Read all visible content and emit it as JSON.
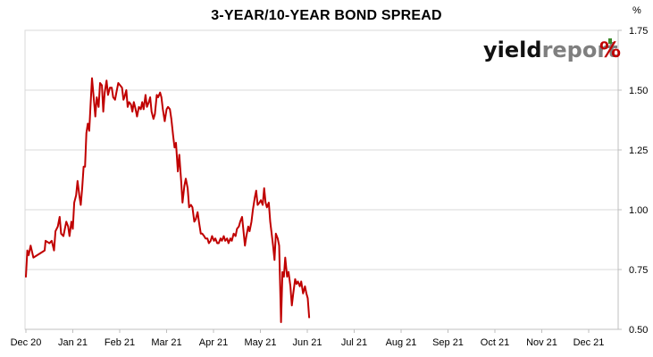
{
  "chart_data": {
    "type": "line",
    "title": "3-YEAR/10-YEAR BOND SPREAD",
    "unit": "%",
    "xlabel": "",
    "ylabel": "",
    "ylim": [
      0.5,
      1.75
    ],
    "y_ticks": [
      "0.50",
      "0.75",
      "1.00",
      "1.25",
      "1.50",
      "1.75"
    ],
    "y_axis_position": "right",
    "x_ticks": [
      "Dec 20",
      "Jan 21",
      "Feb 21",
      "Mar 21",
      "Apr 21",
      "May 21",
      "Jun 21",
      "Jul 21",
      "Aug 21",
      "Sep 21",
      "Oct 21",
      "Nov 21",
      "Dec 21"
    ],
    "grid": "horizontal",
    "line_color": "#c00000",
    "series": [
      {
        "values": [
          [
            0,
            0.72
          ],
          [
            0.03,
            0.83
          ],
          [
            0.06,
            0.81
          ],
          [
            0.1,
            0.85
          ],
          [
            0.16,
            0.8
          ],
          [
            0.4,
            0.83
          ],
          [
            0.42,
            0.87
          ],
          [
            0.5,
            0.86
          ],
          [
            0.55,
            0.87
          ],
          [
            0.6,
            0.83
          ],
          [
            0.63,
            0.91
          ],
          [
            0.68,
            0.93
          ],
          [
            0.72,
            0.97
          ],
          [
            0.75,
            0.9
          ],
          [
            0.8,
            0.89
          ],
          [
            0.86,
            0.95
          ],
          [
            0.9,
            0.93
          ],
          [
            0.93,
            0.89
          ],
          [
            0.97,
            0.95
          ],
          [
            1.0,
            0.92
          ],
          [
            1.03,
            1.03
          ],
          [
            1.07,
            1.06
          ],
          [
            1.1,
            1.12
          ],
          [
            1.14,
            1.06
          ],
          [
            1.17,
            1.02
          ],
          [
            1.2,
            1.09
          ],
          [
            1.23,
            1.18
          ],
          [
            1.26,
            1.18
          ],
          [
            1.29,
            1.32
          ],
          [
            1.32,
            1.36
          ],
          [
            1.35,
            1.33
          ],
          [
            1.38,
            1.44
          ],
          [
            1.41,
            1.55
          ],
          [
            1.45,
            1.46
          ],
          [
            1.48,
            1.39
          ],
          [
            1.51,
            1.47
          ],
          [
            1.55,
            1.43
          ],
          [
            1.58,
            1.53
          ],
          [
            1.62,
            1.52
          ],
          [
            1.65,
            1.41
          ],
          [
            1.68,
            1.49
          ],
          [
            1.72,
            1.54
          ],
          [
            1.75,
            1.48
          ],
          [
            1.79,
            1.51
          ],
          [
            1.83,
            1.51
          ],
          [
            1.86,
            1.47
          ],
          [
            1.9,
            1.46
          ],
          [
            1.93,
            1.49
          ],
          [
            1.97,
            1.53
          ],
          [
            2.01,
            1.52
          ],
          [
            2.05,
            1.51
          ],
          [
            2.08,
            1.46
          ],
          [
            2.1,
            1.47
          ],
          [
            2.14,
            1.5
          ],
          [
            2.17,
            1.43
          ],
          [
            2.2,
            1.45
          ],
          [
            2.24,
            1.44
          ],
          [
            2.27,
            1.41
          ],
          [
            2.3,
            1.45
          ],
          [
            2.34,
            1.42
          ],
          [
            2.37,
            1.39
          ],
          [
            2.41,
            1.43
          ],
          [
            2.45,
            1.42
          ],
          [
            2.48,
            1.45
          ],
          [
            2.51,
            1.42
          ],
          [
            2.55,
            1.48
          ],
          [
            2.58,
            1.43
          ],
          [
            2.62,
            1.45
          ],
          [
            2.65,
            1.47
          ],
          [
            2.68,
            1.41
          ],
          [
            2.72,
            1.38
          ],
          [
            2.75,
            1.4
          ],
          [
            2.79,
            1.48
          ],
          [
            2.82,
            1.47
          ],
          [
            2.86,
            1.49
          ],
          [
            2.89,
            1.47
          ],
          [
            2.92,
            1.42
          ],
          [
            2.96,
            1.37
          ],
          [
            3.0,
            1.42
          ],
          [
            3.03,
            1.43
          ],
          [
            3.07,
            1.42
          ],
          [
            3.1,
            1.38
          ],
          [
            3.14,
            1.31
          ],
          [
            3.17,
            1.26
          ],
          [
            3.2,
            1.28
          ],
          [
            3.24,
            1.16
          ],
          [
            3.27,
            1.23
          ],
          [
            3.31,
            1.12
          ],
          [
            3.34,
            1.03
          ],
          [
            3.38,
            1.1
          ],
          [
            3.41,
            1.13
          ],
          [
            3.45,
            1.09
          ],
          [
            3.48,
            1.01
          ],
          [
            3.52,
            1.02
          ],
          [
            3.55,
            1.01
          ],
          [
            3.59,
            0.95
          ],
          [
            3.62,
            0.96
          ],
          [
            3.66,
            0.99
          ],
          [
            3.69,
            0.95
          ],
          [
            3.73,
            0.9
          ],
          [
            3.76,
            0.9
          ],
          [
            3.8,
            0.89
          ],
          [
            3.83,
            0.88
          ],
          [
            3.87,
            0.88
          ],
          [
            3.9,
            0.86
          ],
          [
            3.94,
            0.87
          ],
          [
            3.97,
            0.89
          ],
          [
            4.01,
            0.87
          ],
          [
            4.04,
            0.88
          ],
          [
            4.08,
            0.86
          ],
          [
            4.11,
            0.86
          ],
          [
            4.15,
            0.88
          ],
          [
            4.18,
            0.87
          ],
          [
            4.22,
            0.89
          ],
          [
            4.25,
            0.87
          ],
          [
            4.29,
            0.88
          ],
          [
            4.32,
            0.86
          ],
          [
            4.36,
            0.88
          ],
          [
            4.39,
            0.87
          ],
          [
            4.43,
            0.9
          ],
          [
            4.47,
            0.89
          ],
          [
            4.5,
            0.92
          ],
          [
            4.54,
            0.93
          ],
          [
            4.57,
            0.95
          ],
          [
            4.61,
            0.97
          ],
          [
            4.64,
            0.91
          ],
          [
            4.67,
            0.85
          ],
          [
            4.7,
            0.89
          ],
          [
            4.74,
            0.93
          ],
          [
            4.77,
            0.91
          ],
          [
            4.81,
            0.95
          ],
          [
            4.84,
            1.0
          ],
          [
            4.88,
            1.05
          ],
          [
            4.91,
            1.08
          ],
          [
            4.94,
            1.02
          ],
          [
            4.98,
            1.03
          ],
          [
            5.01,
            1.04
          ],
          [
            5.05,
            1.02
          ],
          [
            5.08,
            1.09
          ],
          [
            5.11,
            1.03
          ],
          [
            5.14,
            1.01
          ],
          [
            5.18,
            1.03
          ],
          [
            5.21,
            0.95
          ],
          [
            5.24,
            0.9
          ],
          [
            5.27,
            0.85
          ],
          [
            5.3,
            0.79
          ],
          [
            5.33,
            0.9
          ],
          [
            5.37,
            0.88
          ],
          [
            5.4,
            0.85
          ],
          [
            5.44,
            0.53
          ],
          [
            5.47,
            0.74
          ],
          [
            5.5,
            0.72
          ],
          [
            5.53,
            0.8
          ],
          [
            5.57,
            0.72
          ],
          [
            5.6,
            0.74
          ],
          [
            5.64,
            0.68
          ],
          [
            5.67,
            0.6
          ],
          [
            5.7,
            0.65
          ],
          [
            5.74,
            0.71
          ],
          [
            5.77,
            0.69
          ],
          [
            5.8,
            0.7
          ],
          [
            5.84,
            0.68
          ],
          [
            5.87,
            0.7
          ],
          [
            5.91,
            0.65
          ],
          [
            5.95,
            0.68
          ],
          [
            5.98,
            0.65
          ],
          [
            6.01,
            0.63
          ],
          [
            6.04,
            0.55
          ]
        ]
      }
    ]
  },
  "logo": {
    "text_dark": "yield",
    "text_gray": "report",
    "symbol": "%"
  }
}
